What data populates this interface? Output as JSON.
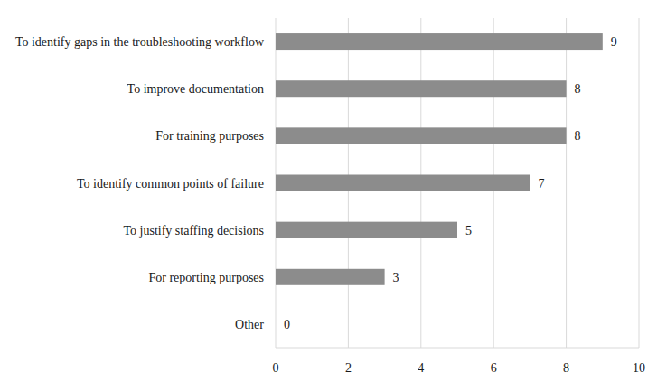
{
  "chart_data": {
    "type": "bar",
    "orientation": "horizontal",
    "categories": [
      "To identify gaps in the troubleshooting workflow",
      "To improve documentation",
      "For training purposes",
      "To identify common points of failure",
      "To justify staffing decisions",
      "For reporting purposes",
      "Other"
    ],
    "values": [
      9,
      8,
      8,
      7,
      5,
      3,
      0
    ],
    "color": "#8c8c8c",
    "xlim": [
      0,
      10
    ],
    "xticks": [
      0,
      2,
      4,
      6,
      8,
      10
    ],
    "grid": true,
    "data_labels": true
  }
}
